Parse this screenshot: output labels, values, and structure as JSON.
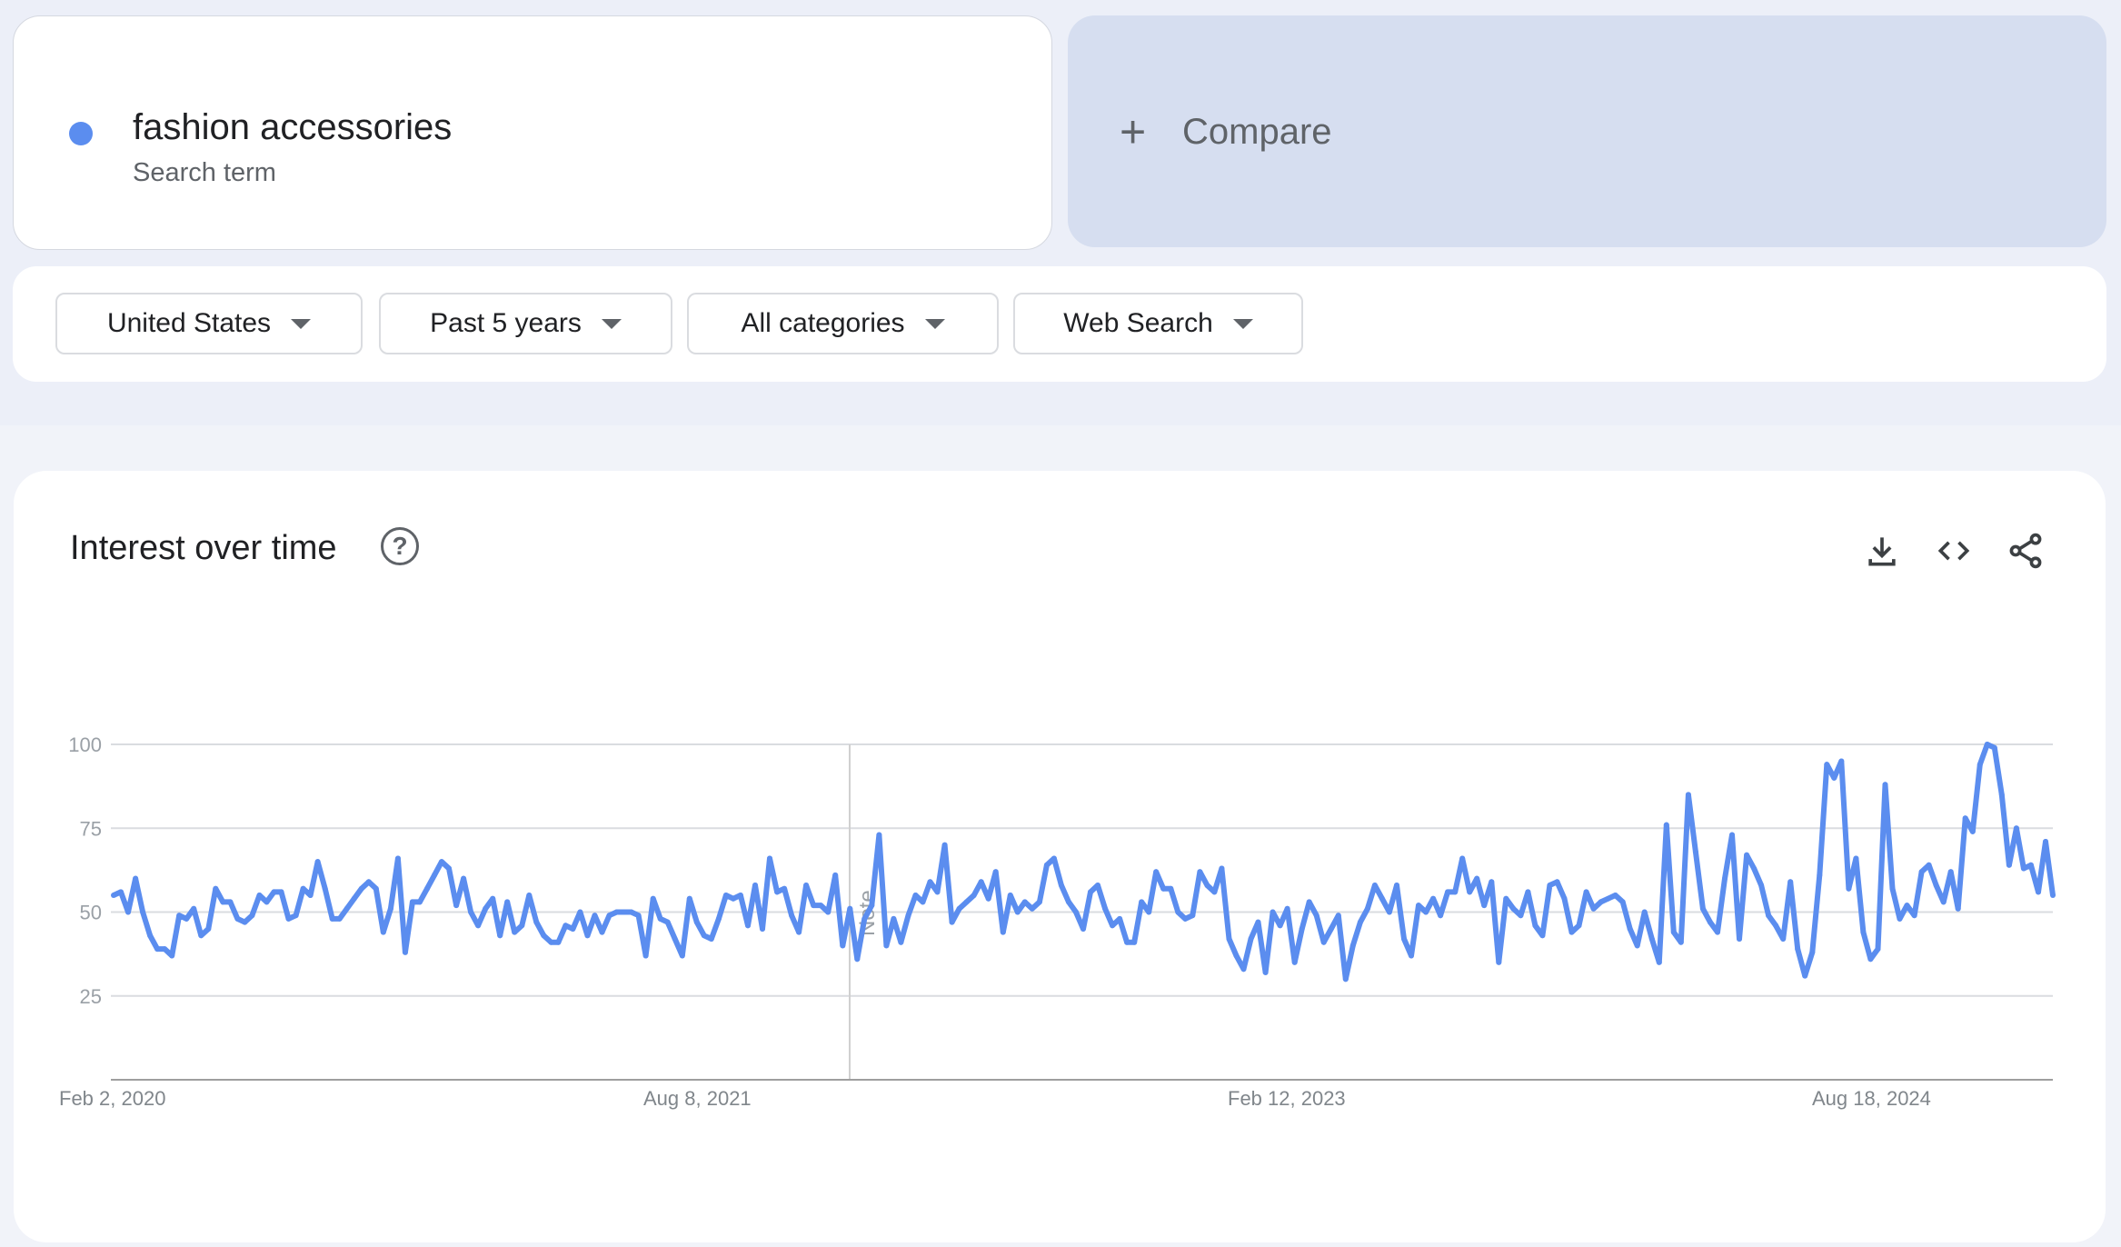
{
  "search_term": {
    "name": "fashion accessories",
    "type": "Search term",
    "color": "#5b8def"
  },
  "compare": {
    "icon": "plus-icon",
    "label": "Compare"
  },
  "filters": [
    {
      "label": "United States"
    },
    {
      "label": "Past 5 years"
    },
    {
      "label": "All categories"
    },
    {
      "label": "Web Search"
    }
  ],
  "chart_panel": {
    "title": "Interest over time",
    "actions": [
      "download-icon",
      "embed-code-icon",
      "share-icon"
    ],
    "note_label": "Note"
  },
  "chart_data": {
    "type": "line",
    "title": "Interest over time",
    "xlabel": "",
    "ylabel": "",
    "ylim": [
      0,
      100
    ],
    "yticks": [
      25,
      50,
      75,
      100
    ],
    "xticks": [
      "Feb 2, 2020",
      "Aug 8, 2021",
      "Feb 12, 2023",
      "Aug 18, 2024"
    ],
    "x_interval": "weekly",
    "grid": true,
    "legend": "none",
    "series": [
      {
        "color": "#5b8def",
        "values": [
          55,
          56,
          50,
          60,
          50,
          43,
          39,
          39,
          37,
          49,
          48,
          51,
          43,
          45,
          57,
          53,
          53,
          48,
          47,
          49,
          55,
          53,
          56,
          56,
          48,
          49,
          57,
          55,
          65,
          57,
          48,
          48,
          51,
          54,
          57,
          59,
          57,
          44,
          51,
          66,
          38,
          53,
          53,
          57,
          61,
          65,
          63,
          52,
          60,
          50,
          46,
          51,
          54,
          43,
          53,
          44,
          46,
          55,
          47,
          43,
          41,
          41,
          46,
          45,
          50,
          43,
          49,
          44,
          49,
          50,
          50,
          50,
          49,
          37,
          54,
          48,
          47,
          42,
          37,
          54,
          47,
          43,
          42,
          48,
          55,
          54,
          55,
          46,
          58,
          45,
          66,
          56,
          57,
          49,
          44,
          58,
          52,
          52,
          50,
          61,
          40,
          51,
          36,
          48,
          52,
          73,
          40,
          48,
          41,
          49,
          55,
          53,
          59,
          56,
          70,
          47,
          51,
          53,
          55,
          59,
          54,
          62,
          44,
          55,
          50,
          53,
          51,
          53,
          64,
          66,
          58,
          53,
          50,
          45,
          56,
          58,
          51,
          46,
          48,
          41,
          41,
          53,
          50,
          62,
          57,
          57,
          50,
          48,
          49,
          62,
          58,
          56,
          63,
          42,
          37,
          33,
          42,
          47,
          32,
          50,
          46,
          51,
          35,
          45,
          53,
          49,
          41,
          45,
          49,
          30,
          40,
          47,
          51,
          58,
          54,
          50,
          58,
          42,
          37,
          52,
          50,
          54,
          49,
          56,
          56,
          66,
          56,
          60,
          52,
          59,
          35,
          54,
          51,
          49,
          56,
          46,
          43,
          58,
          59,
          54,
          44,
          46,
          56,
          51,
          53,
          54,
          55,
          53,
          45,
          40,
          50,
          42,
          35,
          76,
          44,
          41,
          85,
          68,
          51,
          47,
          44,
          60,
          73,
          42,
          67,
          63,
          58,
          49,
          46,
          42,
          59,
          39,
          31,
          38,
          61,
          94,
          90,
          95,
          57,
          66,
          44,
          36,
          39,
          88,
          57,
          48,
          52,
          49,
          62,
          64,
          58,
          53,
          62,
          51,
          78,
          74,
          94,
          100,
          99,
          85,
          64,
          75,
          63,
          64,
          56,
          71,
          55
        ]
      }
    ],
    "annotations": [
      {
        "label": "Note"
      }
    ]
  }
}
